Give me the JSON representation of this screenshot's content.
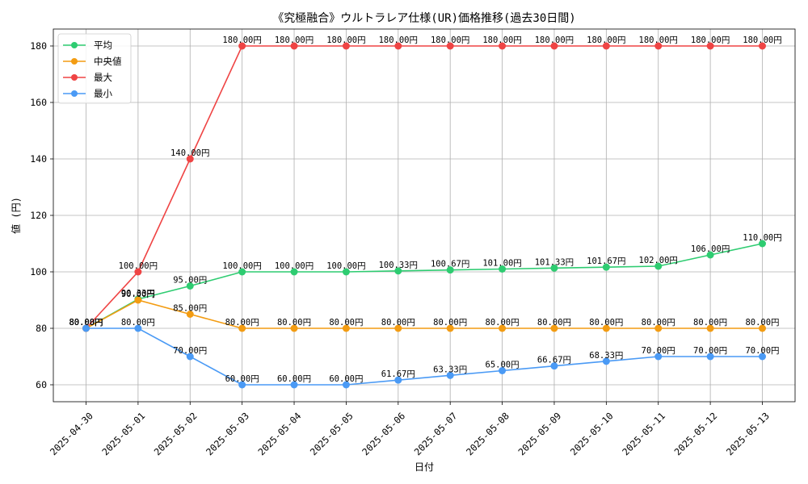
{
  "chart_data": {
    "type": "line",
    "title": "《究極融合》ウルトラレア仕様(UR)価格推移(過去30日間)",
    "xlabel": "日付",
    "ylabel": "値 (円)",
    "ylim": [
      54,
      186
    ],
    "yticks": [
      60,
      80,
      100,
      120,
      140,
      160,
      180
    ],
    "grid": true,
    "legend_position": "top-left",
    "label_suffix": "円",
    "categories": [
      "2025-04-30",
      "2025-05-01",
      "2025-05-02",
      "2025-05-03",
      "2025-05-04",
      "2025-05-05",
      "2025-05-06",
      "2025-05-07",
      "2025-05-08",
      "2025-05-09",
      "2025-05-10",
      "2025-05-11",
      "2025-05-12",
      "2025-05-13"
    ],
    "series": [
      {
        "name": "平均",
        "color": "#2ecc71",
        "values": [
          80.0,
          90.33,
          95.0,
          100.0,
          100.0,
          100.0,
          100.33,
          100.67,
          101.0,
          101.33,
          101.67,
          102.0,
          106.0,
          110.0
        ]
      },
      {
        "name": "中央値",
        "color": "#f39c12",
        "values": [
          80.0,
          90.0,
          85.0,
          80.0,
          80.0,
          80.0,
          80.0,
          80.0,
          80.0,
          80.0,
          80.0,
          80.0,
          80.0,
          80.0
        ]
      },
      {
        "name": "最大",
        "color": "#ef4444",
        "values": [
          80.0,
          100.0,
          140.0,
          180.0,
          180.0,
          180.0,
          180.0,
          180.0,
          180.0,
          180.0,
          180.0,
          180.0,
          180.0,
          180.0
        ]
      },
      {
        "name": "最小",
        "color": "#4a9af5",
        "values": [
          80.0,
          80.0,
          70.0,
          60.0,
          60.0,
          60.0,
          61.67,
          63.33,
          65.0,
          66.67,
          68.33,
          70.0,
          70.0,
          70.0
        ]
      }
    ]
  }
}
